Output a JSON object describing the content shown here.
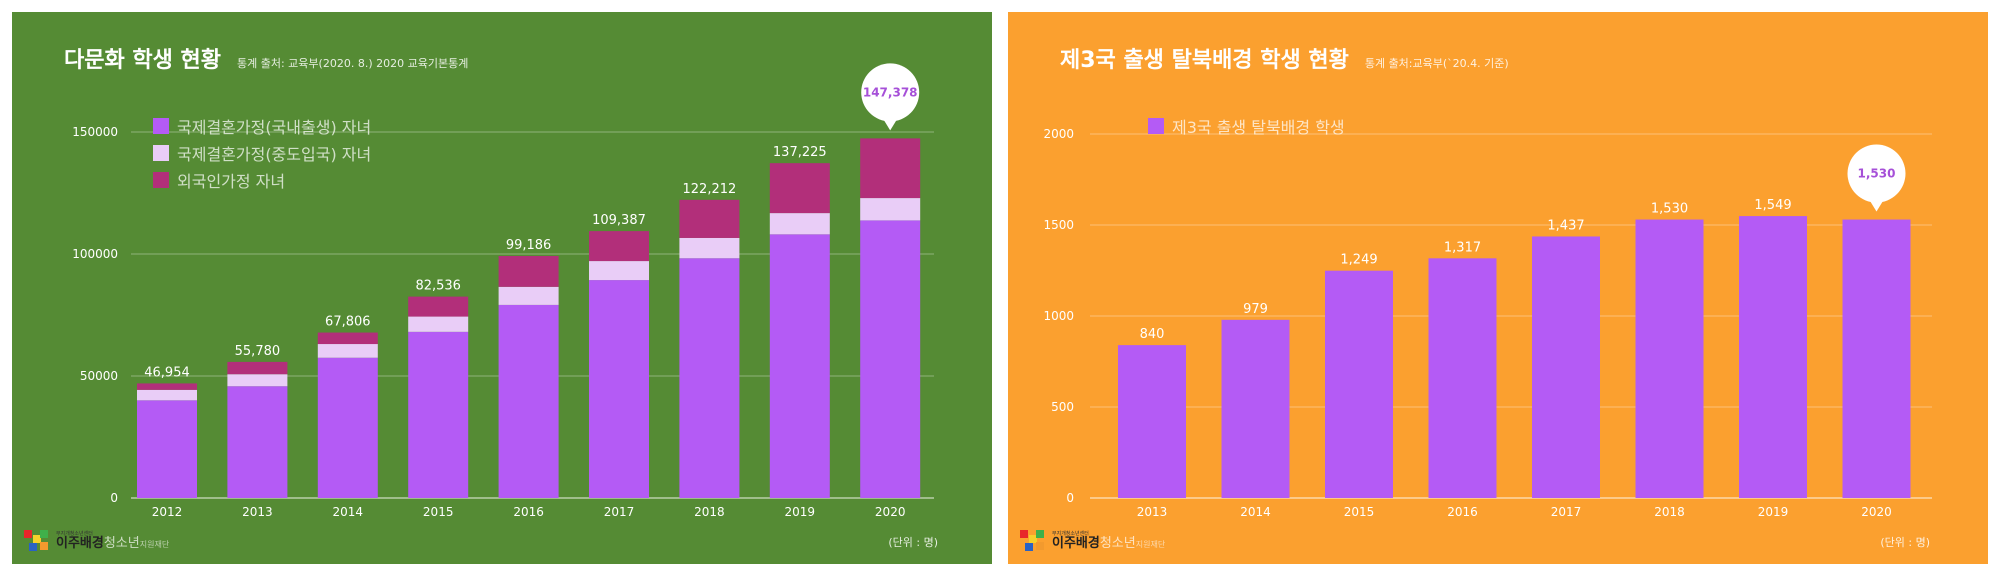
{
  "colors": {
    "purple": "#b45bf5",
    "light": "#e9cdf7",
    "magenta": "#b22f7a",
    "callout_text": "#a650d8"
  },
  "logo": {
    "top": "무지개청소년센터",
    "main": "이주배경",
    "light": "청소년",
    "sub": "지원재단"
  },
  "chart_data": [
    {
      "type": "bar",
      "title": "다문화 학생 현황",
      "source": "통계 출처: 교육부(2020. 8.) 2020 교육기본통계",
      "unit": "(단위 : 명)",
      "stacked": true,
      "categories": [
        "2012",
        "2013",
        "2014",
        "2015",
        "2016",
        "2017",
        "2018",
        "2019",
        "2020"
      ],
      "series": [
        {
          "name": "국제결혼가정(국내출생) 자녀",
          "color": "#b45bf5",
          "values": [
            40040,
            45814,
            57498,
            68099,
            79134,
            89314,
            98263,
            108069,
            113774
          ]
        },
        {
          "name": "국제결혼가정(중도입국) 자녀",
          "color": "#e9cdf7",
          "values": [
            4288,
            4922,
            5602,
            6261,
            7418,
            7792,
            8320,
            8697,
            9151
          ]
        },
        {
          "name": "외국인가정 자녀",
          "color": "#b22f7a",
          "values": [
            2626,
            5044,
            4706,
            8176,
            12634,
            12281,
            15629,
            20459,
            24453
          ]
        }
      ],
      "totals": [
        "46,954",
        "55,780",
        "67,806",
        "82,536",
        "99,186",
        "109,387",
        "122,212",
        "137,225",
        "147,378"
      ],
      "ylim": [
        0,
        150000
      ],
      "yticks": [
        0,
        50000,
        100000,
        150000
      ],
      "ytick_labels": [
        "0",
        "50000",
        "100000",
        "150000"
      ],
      "grid": true,
      "legend_position": "top-left",
      "callout": {
        "category": "2020",
        "label": "147,378"
      }
    },
    {
      "type": "bar",
      "title": "제3국 출생 탈북배경 학생 현황",
      "source": "통계 출처:교육부(`20.4. 기준)",
      "unit": "(단위 : 명)",
      "categories": [
        "2013",
        "2014",
        "2015",
        "2016",
        "2017",
        "2018",
        "2019",
        "2020"
      ],
      "series": [
        {
          "name": "제3국 출생 탈북배경 학생",
          "color": "#b45bf5",
          "values": [
            840,
            979,
            1249,
            1317,
            1437,
            1530,
            1549,
            1530
          ]
        }
      ],
      "value_labels": [
        "840",
        "979",
        "1,249",
        "1,317",
        "1,437",
        "1,530",
        "1,549",
        "1,530"
      ],
      "ylim": [
        0,
        2000
      ],
      "yticks": [
        0,
        500,
        1000,
        1500,
        2000
      ],
      "ytick_labels": [
        "0",
        "500",
        "1000",
        "1500",
        "2000"
      ],
      "grid": true,
      "legend_position": "top-left",
      "callout": {
        "category": "2020",
        "label": "1,530"
      }
    }
  ]
}
